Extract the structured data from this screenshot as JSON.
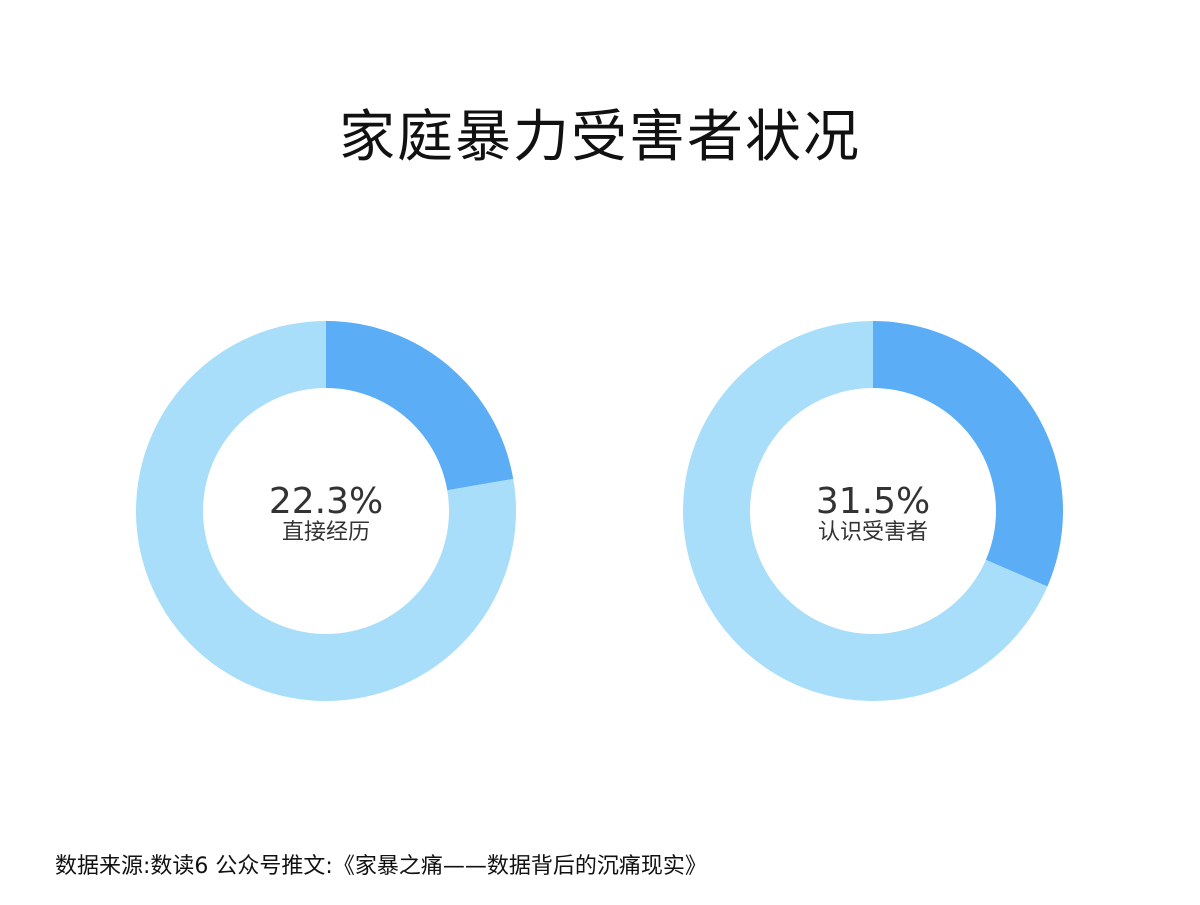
{
  "chart_data": [
    {
      "type": "pie",
      "donut": true,
      "values": [
        22.3,
        77.7
      ],
      "center_value": "22.3%",
      "center_label": "直接经历",
      "colors": [
        "#5BADF5",
        "#A8DEF9"
      ]
    },
    {
      "type": "pie",
      "donut": true,
      "values": [
        31.5,
        68.5
      ],
      "center_value": "31.5%",
      "center_label": "认识受害者",
      "colors": [
        "#5BADF5",
        "#A8DEF9"
      ]
    }
  ],
  "title": "家庭暴力受害者状况",
  "source": "数据来源:数读6 公众号推文:《家暴之痛——数据背后的沉痛现实》"
}
